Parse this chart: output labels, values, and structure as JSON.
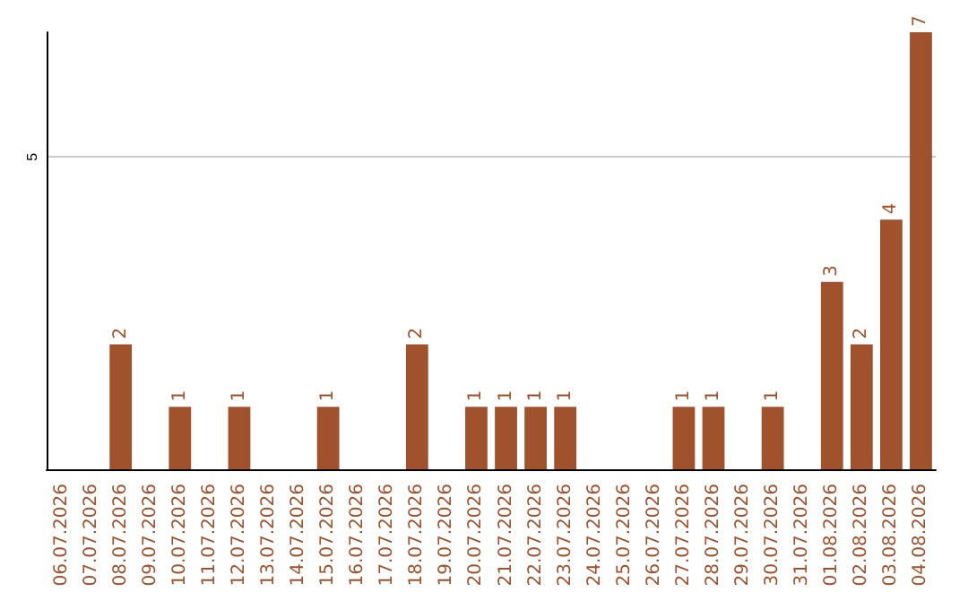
{
  "chart_data": {
    "type": "bar",
    "categories": [
      "06.07.2026",
      "07.07.2026",
      "08.07.2026",
      "09.07.2026",
      "10.07.2026",
      "11.07.2026",
      "12.07.2026",
      "13.07.2026",
      "14.07.2026",
      "15.07.2026",
      "16.07.2026",
      "17.07.2026",
      "18.07.2026",
      "19.07.2026",
      "20.07.2026",
      "21.07.2026",
      "22.07.2026",
      "23.07.2026",
      "24.07.2026",
      "25.07.2026",
      "26.07.2026",
      "27.07.2026",
      "28.07.2026",
      "29.07.2026",
      "30.07.2026",
      "31.07.2026",
      "01.08.2026",
      "02.08.2026",
      "03.08.2026",
      "04.08.2026"
    ],
    "values": [
      0,
      0,
      2,
      0,
      1,
      0,
      1,
      0,
      0,
      1,
      0,
      0,
      2,
      0,
      1,
      1,
      1,
      1,
      0,
      0,
      0,
      1,
      1,
      0,
      1,
      0,
      3,
      2,
      4,
      7
    ],
    "value_labels": [
      null,
      null,
      "2",
      null,
      "1",
      null,
      "1",
      null,
      null,
      "1",
      null,
      null,
      "2",
      null,
      "1",
      "1",
      "1",
      "1",
      null,
      null,
      null,
      "1",
      "1",
      null,
      "1",
      null,
      "3",
      "2",
      "4",
      "7"
    ],
    "color": "#a0522d",
    "ylim": [
      0,
      7
    ],
    "yticks": [
      {
        "value": 0,
        "label": null
      },
      5
    ],
    "grid": "y"
  }
}
